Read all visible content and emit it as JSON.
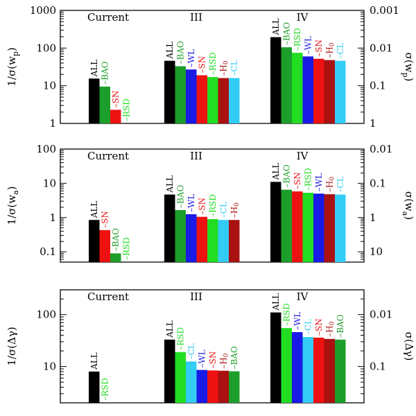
{
  "colors": {
    "ALL": "#000000",
    "BAO": "#1c9e2a",
    "SN": "#ee1111",
    "RSD": "#22dd22",
    "WL": "#1a1ae6",
    "H0": "#aa1111",
    "CL": "#33ccf5"
  },
  "chart_data": [
    {
      "type": "bar",
      "ylabel_left": "1/σ(w_p)",
      "ylabel_right": "σ(w_p)",
      "yscale": "log",
      "ylim": [
        1,
        1000
      ],
      "left_ticks": [
        "1",
        "10",
        "100",
        "1000"
      ],
      "right_ticks": [
        "1",
        "0.1",
        "0.01",
        "0.001"
      ],
      "groups": [
        {
          "label": "Current",
          "bars": [
            {
              "probe": "ALL",
              "value": 15.5
            },
            {
              "probe": "BAO",
              "value": 9.5
            },
            {
              "probe": "SN",
              "value": 2.3
            },
            {
              "probe": "RSD",
              "value": 1.0
            }
          ]
        },
        {
          "label": "III",
          "bars": [
            {
              "probe": "ALL",
              "value": 46
            },
            {
              "probe": "BAO",
              "value": 33
            },
            {
              "probe": "WL",
              "value": 27
            },
            {
              "probe": "SN",
              "value": 19
            },
            {
              "probe": "RSD",
              "value": 17
            },
            {
              "probe": "H0",
              "value": 16
            },
            {
              "probe": "CL",
              "value": 16
            }
          ]
        },
        {
          "label": "IV",
          "bars": [
            {
              "probe": "ALL",
              "value": 195
            },
            {
              "probe": "BAO",
              "value": 105
            },
            {
              "probe": "RSD",
              "value": 75
            },
            {
              "probe": "WL",
              "value": 60
            },
            {
              "probe": "SN",
              "value": 52
            },
            {
              "probe": "H0",
              "value": 48
            },
            {
              "probe": "CL",
              "value": 46
            }
          ]
        }
      ]
    },
    {
      "type": "bar",
      "ylabel_left": "1/σ(w_a)",
      "ylabel_right": "σ(w_a)",
      "yscale": "log",
      "ylim": [
        0.05,
        100
      ],
      "left_ticks": [
        "0.1",
        "1",
        "10",
        "100"
      ],
      "right_ticks": [
        "10",
        "1",
        "0.1",
        "0.01"
      ],
      "groups": [
        {
          "label": "Current",
          "bars": [
            {
              "probe": "ALL",
              "value": 0.85
            },
            {
              "probe": "SN",
              "value": 0.43
            },
            {
              "probe": "BAO",
              "value": 0.09
            },
            {
              "probe": "RSD",
              "value": 0.05
            }
          ]
        },
        {
          "label": "III",
          "bars": [
            {
              "probe": "ALL",
              "value": 4.7
            },
            {
              "probe": "BAO",
              "value": 1.65
            },
            {
              "probe": "WL",
              "value": 1.25
            },
            {
              "probe": "SN",
              "value": 1.05
            },
            {
              "probe": "RSD",
              "value": 0.9
            },
            {
              "probe": "CL",
              "value": 0.85
            },
            {
              "probe": "H0",
              "value": 0.85
            }
          ]
        },
        {
          "label": "IV",
          "bars": [
            {
              "probe": "ALL",
              "value": 11
            },
            {
              "probe": "BAO",
              "value": 6.5
            },
            {
              "probe": "SN",
              "value": 5.8
            },
            {
              "probe": "RSD",
              "value": 5.3
            },
            {
              "probe": "WL",
              "value": 5.0
            },
            {
              "probe": "H0",
              "value": 4.8
            },
            {
              "probe": "CL",
              "value": 4.7
            }
          ]
        }
      ]
    },
    {
      "type": "bar",
      "ylabel_left": "1/σ(Δγ)",
      "ylabel_right": "σ(Δγ)",
      "yscale": "log",
      "ylim": [
        2,
        300
      ],
      "left_ticks": [
        "10",
        "100"
      ],
      "right_ticks": [
        "0.1",
        "0.01"
      ],
      "groups": [
        {
          "label": "Current",
          "bars": [
            {
              "probe": "ALL",
              "value": 8
            },
            {
              "probe": "RSD",
              "value": 2
            }
          ]
        },
        {
          "label": "III",
          "bars": [
            {
              "probe": "ALL",
              "value": 33
            },
            {
              "probe": "RSD",
              "value": 19
            },
            {
              "probe": "CL",
              "value": 12.5
            },
            {
              "probe": "WL",
              "value": 8.6
            },
            {
              "probe": "SN",
              "value": 8.4
            },
            {
              "probe": "H0",
              "value": 8.3
            },
            {
              "probe": "BAO",
              "value": 8.1
            }
          ]
        },
        {
          "label": "IV",
          "bars": [
            {
              "probe": "ALL",
              "value": 110
            },
            {
              "probe": "RSD",
              "value": 55
            },
            {
              "probe": "WL",
              "value": 46
            },
            {
              "probe": "CL",
              "value": 37
            },
            {
              "probe": "SN",
              "value": 36
            },
            {
              "probe": "H0",
              "value": 34
            },
            {
              "probe": "BAO",
              "value": 33
            }
          ]
        }
      ]
    }
  ]
}
